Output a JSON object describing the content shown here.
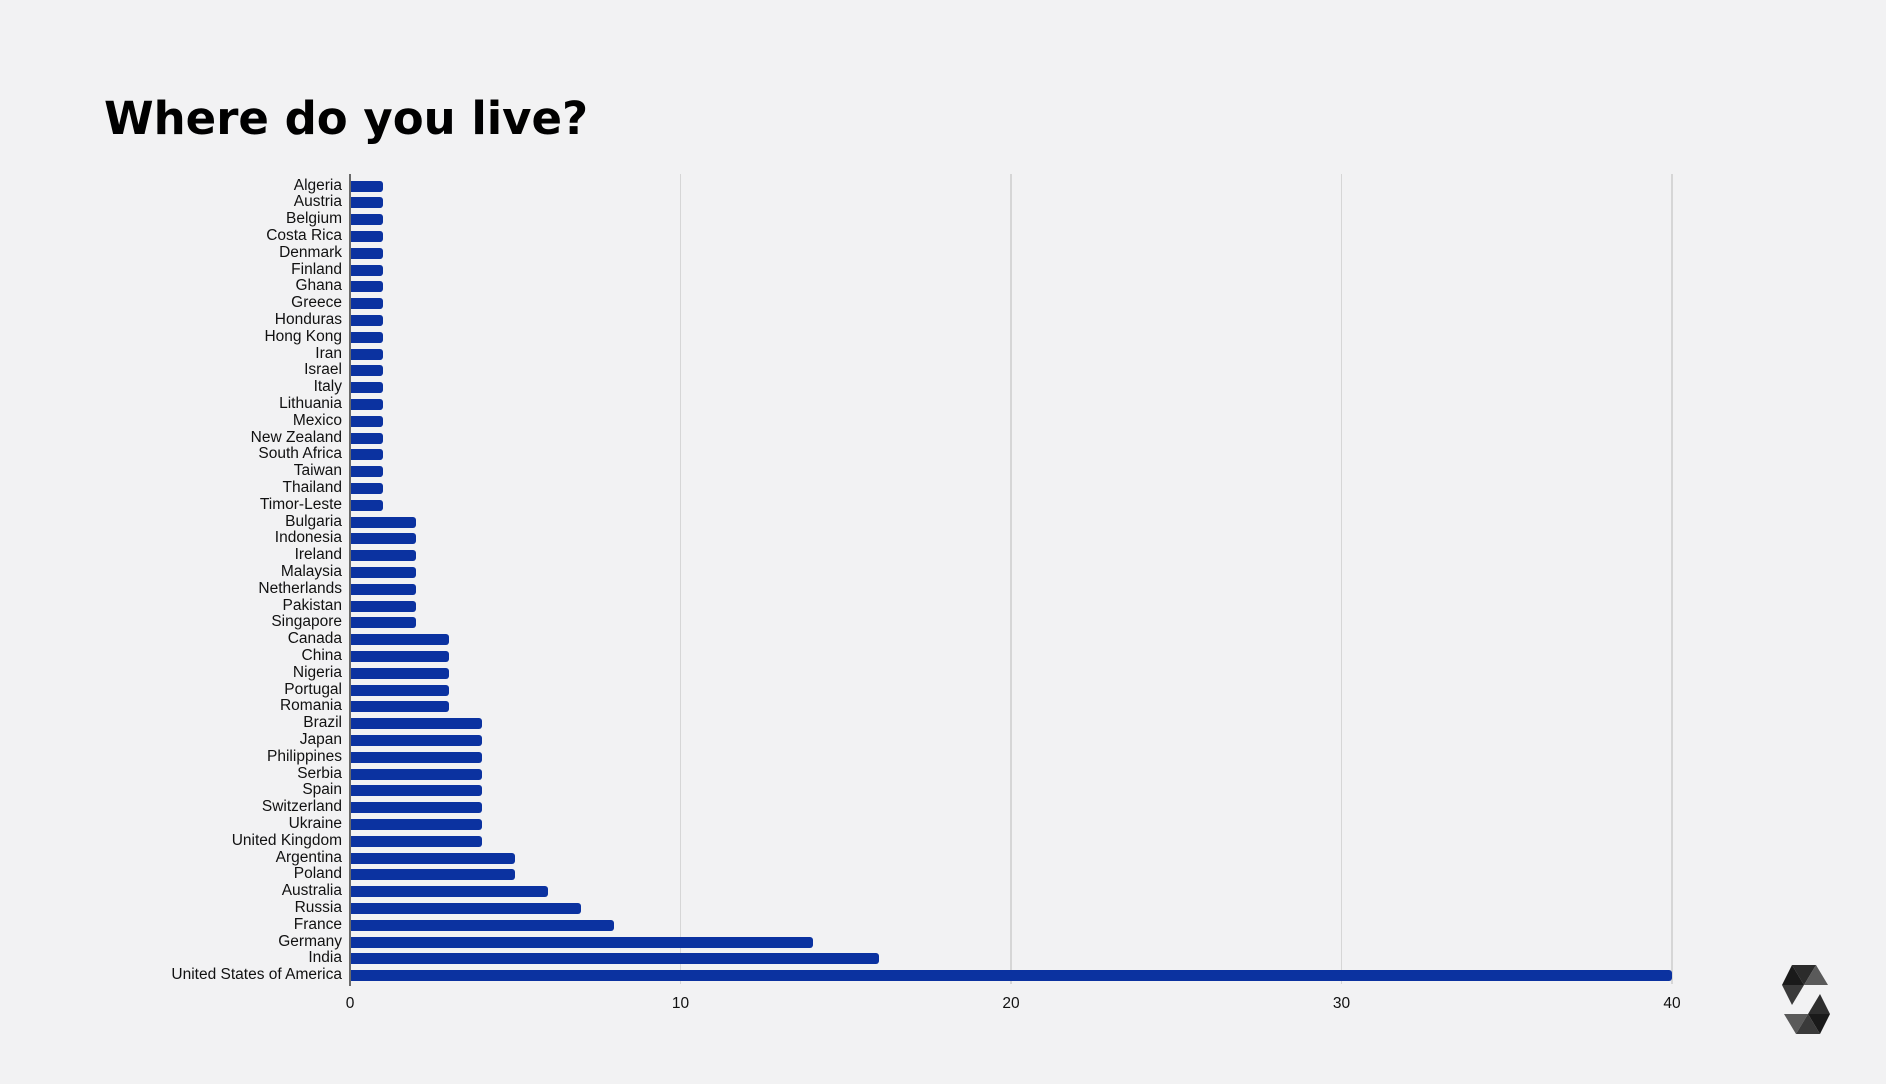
{
  "slide": {
    "title": "Where do you live?"
  },
  "logo": {
    "icon": "solidity-logo-icon"
  },
  "colors": {
    "bar": "#0b32a0",
    "background": "#f2f2f3",
    "grid": "#d6d6d6"
  },
  "chart_data": {
    "type": "bar",
    "orientation": "horizontal",
    "title": "Where do you live?",
    "xlabel": "",
    "ylabel": "",
    "xlim": [
      0,
      40
    ],
    "x_ticks": [
      "0",
      "10",
      "20",
      "30",
      "40"
    ],
    "grid": true,
    "legend": "none",
    "categories": [
      "Algeria",
      "Austria",
      "Belgium",
      "Costa Rica",
      "Denmark",
      "Finland",
      "Ghana",
      "Greece",
      "Honduras",
      "Hong Kong",
      "Iran",
      "Israel",
      "Italy",
      "Lithuania",
      "Mexico",
      "New Zealand",
      "South Africa",
      "Taiwan",
      "Thailand",
      "Timor-Leste",
      "Bulgaria",
      "Indonesia",
      "Ireland",
      "Malaysia",
      "Netherlands",
      "Pakistan",
      "Singapore",
      "Canada",
      "China",
      "Nigeria",
      "Portugal",
      "Romania",
      "Brazil",
      "Japan",
      "Philippines",
      "Serbia",
      "Spain",
      "Switzerland",
      "Ukraine",
      "United Kingdom",
      "Argentina",
      "Poland",
      "Australia",
      "Russia",
      "France",
      "Germany",
      "India",
      "United States of America"
    ],
    "values": [
      1,
      1,
      1,
      1,
      1,
      1,
      1,
      1,
      1,
      1,
      1,
      1,
      1,
      1,
      1,
      1,
      1,
      1,
      1,
      1,
      2,
      2,
      2,
      2,
      2,
      2,
      2,
      3,
      3,
      3,
      3,
      3,
      4,
      4,
      4,
      4,
      4,
      4,
      4,
      4,
      5,
      5,
      6,
      7,
      8,
      14,
      16,
      40
    ]
  }
}
